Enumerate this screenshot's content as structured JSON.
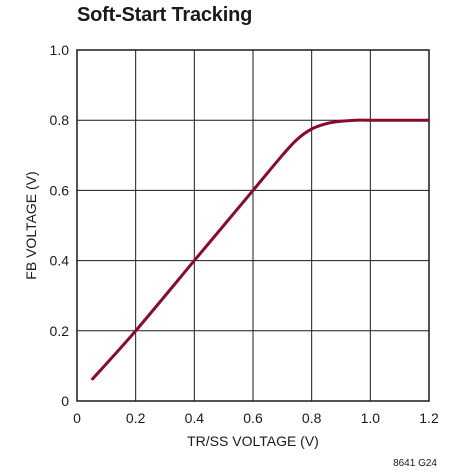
{
  "chart_data": {
    "type": "line",
    "title": "Soft-Start Tracking",
    "xlabel": "TR/SS VOLTAGE (V)",
    "ylabel": "FB VOLTAGE (V)",
    "xlim": [
      0,
      1.2
    ],
    "ylim": [
      0,
      1.0
    ],
    "x_ticks": [
      0,
      0.2,
      0.4,
      0.6,
      0.8,
      1.0,
      1.2
    ],
    "x_tick_labels": [
      "0",
      "0.2",
      "0.4",
      "0.6",
      "0.8",
      "1.0",
      "1.2"
    ],
    "y_ticks": [
      0,
      0.2,
      0.4,
      0.6,
      0.8,
      1.0
    ],
    "y_tick_labels": [
      "0",
      "0.2",
      "0.4",
      "0.6",
      "0.8",
      "1.0"
    ],
    "grid": true,
    "legend": "none",
    "series": [
      {
        "color": "#8b0a2a",
        "x": [
          0.05,
          0.2,
          0.4,
          0.6,
          0.7,
          0.75,
          0.8,
          0.85,
          0.9,
          0.95,
          1.0,
          1.2
        ],
        "y": [
          0.06,
          0.2,
          0.4,
          0.6,
          0.7,
          0.745,
          0.775,
          0.79,
          0.797,
          0.8,
          0.8,
          0.8
        ]
      }
    ],
    "footnote": "8641 G24"
  }
}
